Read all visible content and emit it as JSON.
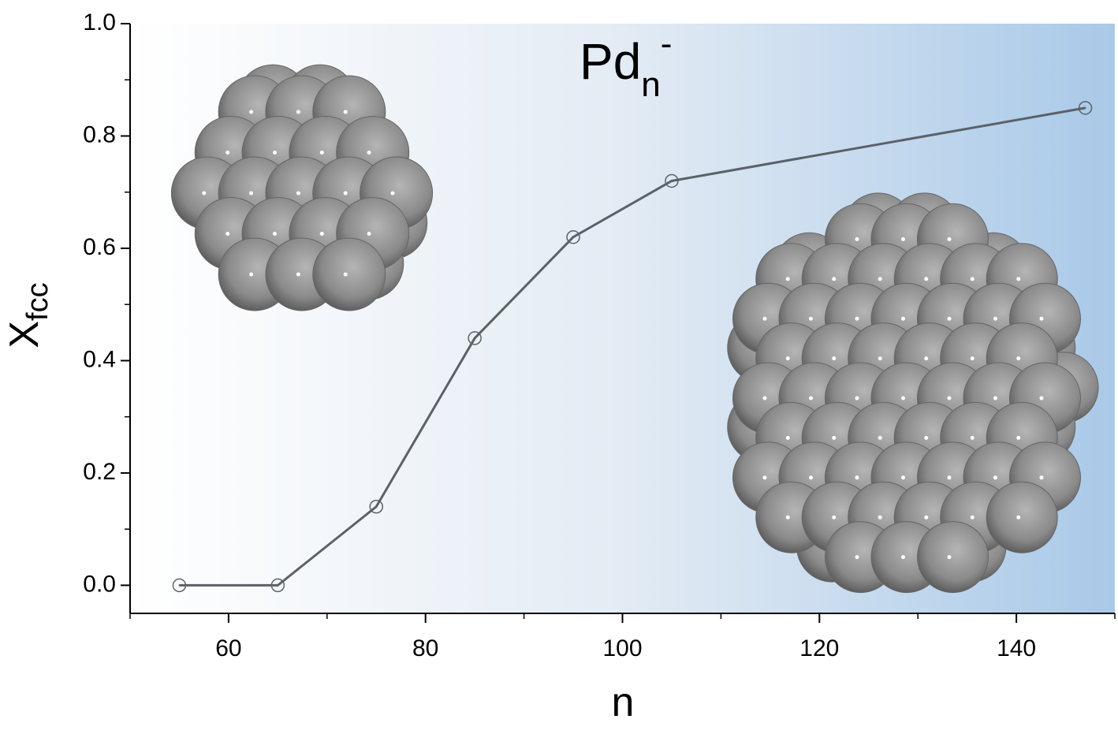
{
  "chart_data": {
    "type": "line",
    "title": {
      "text": "Pd",
      "sub": "n",
      "sup": "-"
    },
    "xlabel": "n",
    "ylabel": {
      "text": "X",
      "sub": "fcc"
    },
    "x": [
      55,
      65,
      75,
      85,
      95,
      105,
      147
    ],
    "series": [
      {
        "color": "#5b6168",
        "values": [
          0,
          0,
          0.14,
          0.44,
          0.62,
          0.72,
          0.85
        ]
      }
    ],
    "xlim": [
      50,
      150
    ],
    "xticks": [
      60,
      80,
      100,
      120,
      140
    ],
    "xminor": [
      50,
      70,
      90,
      110,
      130,
      150
    ],
    "ylim": [
      -0.05,
      1.0
    ],
    "yticks": [
      {
        "value": 0,
        "label": "0.0"
      },
      {
        "value": 0.2,
        "label": "0.2"
      },
      {
        "value": 0.4,
        "label": "0.4"
      },
      {
        "value": 0.6,
        "label": "0.6"
      },
      {
        "value": 0.8,
        "label": "0.8"
      },
      {
        "value": 1.0,
        "label": "1.0"
      }
    ],
    "yminor": [
      0.1,
      0.3,
      0.5,
      0.7,
      0.9
    ]
  }
}
